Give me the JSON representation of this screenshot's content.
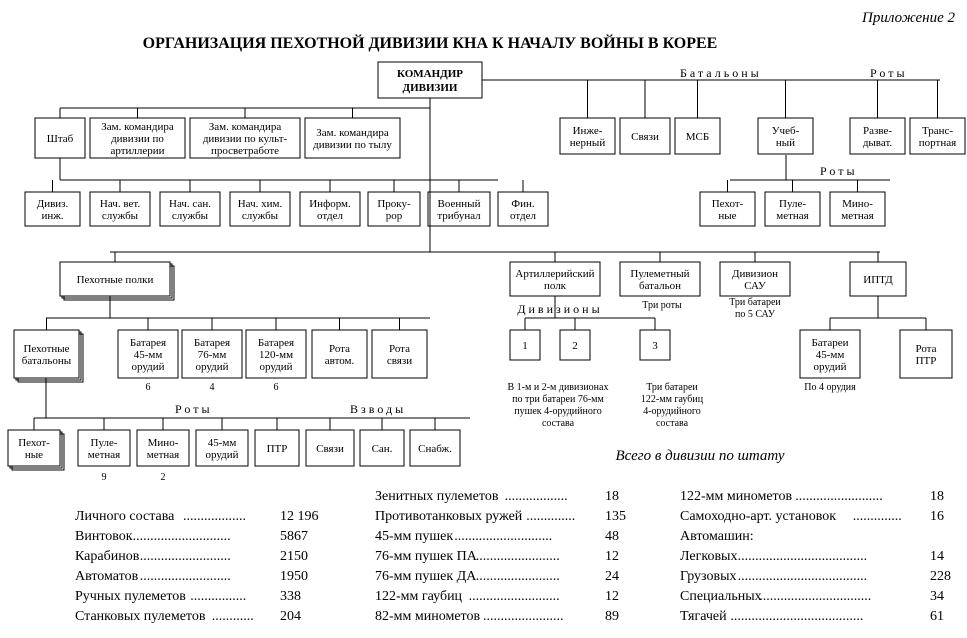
{
  "type": "flowchart",
  "appendix_label": "Приложение 2",
  "title": "ОРГАНИЗАЦИЯ ПЕХОТНОЙ ДИВИЗИИ КНА К НАЧАЛУ ВОЙНЫ В КОРЕЕ",
  "background_color": "#ffffff",
  "line_color": "#000000",
  "box_fill": "#ffffff",
  "box_stroke": "#000000",
  "font_family": "Times New Roman",
  "title_fontsize": 16,
  "label_fontsize": 11,
  "nodes": {
    "root": [
      "КОМАНДИР",
      "ДИВИЗИИ"
    ],
    "r1_labels": {
      "battalions": "Батальоны",
      "companies": "Роты"
    },
    "r1": {
      "shtab": [
        "Штаб"
      ],
      "zam_art": [
        "Зам. командира",
        "дивизии по",
        "артиллерии"
      ],
      "zam_kult": [
        "Зам. командира",
        "дивизии по культ-",
        "просветработе"
      ],
      "zam_tyl": [
        "Зам. командира",
        "дивизии по тылу"
      ],
      "inzh": [
        "Инже-",
        "нерный"
      ],
      "svyazi": [
        "Связи"
      ],
      "msb": [
        "МСБ"
      ],
      "ucheb": [
        "Учеб-",
        "ный"
      ],
      "razved": [
        "Разве-",
        "дыват."
      ],
      "trans": [
        "Транс-",
        "портная"
      ]
    },
    "r2_label": "Роты",
    "r2": {
      "div_inzh": [
        "Дивиз.",
        "инж."
      ],
      "nach_vet": [
        "Нач. вет.",
        "службы"
      ],
      "nach_san": [
        "Нач. сан.",
        "службы"
      ],
      "nach_him": [
        "Нач. хим.",
        "службы"
      ],
      "inform": [
        "Информ.",
        "отдел"
      ],
      "prokur": [
        "Проку-",
        "рор"
      ],
      "voentrib": [
        "Военный",
        "трибунал"
      ],
      "fin": [
        "Фин.",
        "отдел"
      ],
      "pehot": [
        "Пехот-",
        "ные"
      ],
      "pulem": [
        "Пуле-",
        "метная"
      ],
      "minom": [
        "Мино-",
        "метная"
      ]
    },
    "r3": {
      "peh_polki": [
        "Пехотные полки"
      ],
      "art_polk": [
        "Артиллерийский",
        "полк"
      ],
      "pul_bat": [
        "Пулеметный",
        "батальон"
      ],
      "div_sau": [
        "Дивизион",
        "САУ"
      ],
      "iptd": [
        "ИПТД"
      ]
    },
    "r3_labels": {
      "divisiony": "Дивизионы",
      "tri_roty": "Три роты",
      "tri_bat_sau": [
        "Три батареи",
        "по 5 САУ"
      ]
    },
    "r4": {
      "peh_bat": [
        "Пехотные",
        "батальоны"
      ],
      "bat45": [
        "Батарея",
        "45-мм",
        "орудий"
      ],
      "bat76": [
        "Батарея",
        "76-мм",
        "орудий"
      ],
      "bat120": [
        "Батарея",
        "120-мм",
        "орудий"
      ],
      "rota_avt": [
        "Рота",
        "автом."
      ],
      "rota_svz": [
        "Рота",
        "связи"
      ],
      "d1": [
        "1"
      ],
      "d2": [
        "2"
      ],
      "d3": [
        "3"
      ],
      "bat45b": [
        "Батареи",
        "45-мм",
        "орудий"
      ],
      "rota_ptr": [
        "Рота",
        "ПТР"
      ]
    },
    "r4_counts": {
      "bat45": "6",
      "bat76": "4",
      "bat120": "6",
      "bat45b": "По 4 орудия"
    },
    "r4_notes": {
      "d12": [
        "В 1-м и 2-м дивизионах",
        "по три батареи 76-мм",
        "пушек 4-орудийного",
        "состава"
      ],
      "d3": [
        "Три батареи",
        "122-мм гаубиц",
        "4-орудийного",
        "состава"
      ]
    },
    "r5_labels": {
      "roty": "Роты",
      "vzvody": "Взводы"
    },
    "r5": {
      "pehot": [
        "Пехот-",
        "ные"
      ],
      "pulem": [
        "Пуле-",
        "метная"
      ],
      "minom": [
        "Мино-",
        "метная"
      ],
      "or45": [
        "45-мм",
        "орудий"
      ],
      "ptr": [
        "ПТР"
      ],
      "svz": [
        "Связи"
      ],
      "san": [
        "Сан."
      ],
      "snab": [
        "Снабж."
      ]
    },
    "r5_counts": {
      "pulem": "9",
      "minom": "2"
    }
  },
  "stats": {
    "heading": "Всего в дивизии по штату",
    "col1": [
      [
        "Личного состава",
        "12 196"
      ],
      [
        "Винтовок",
        "5867"
      ],
      [
        "Карабинов",
        "2150"
      ],
      [
        "Автоматов",
        "1950"
      ],
      [
        "Ручных пулеметов",
        "338"
      ],
      [
        "Станковых пулеметов",
        "204"
      ]
    ],
    "col2": [
      [
        "Зенитных пулеметов",
        "18"
      ],
      [
        "Противотанковых ружей",
        "135"
      ],
      [
        "45-мм пушек",
        "48"
      ],
      [
        "76-мм пушек ПА",
        "12"
      ],
      [
        "76-мм пушек ДА",
        "24"
      ],
      [
        "122-мм гаубиц",
        "12"
      ],
      [
        "82-мм минометов",
        "89"
      ]
    ],
    "col3": [
      [
        "122-мм миномeтов",
        "18"
      ],
      [
        "Самоходно-арт. установок",
        "16"
      ],
      [
        "Автомашин:",
        ""
      ],
      [
        "Легковых",
        "14"
      ],
      [
        "Грузовых",
        "228"
      ],
      [
        "Специальных",
        "34"
      ],
      [
        "Тягачей",
        "61"
      ]
    ]
  }
}
